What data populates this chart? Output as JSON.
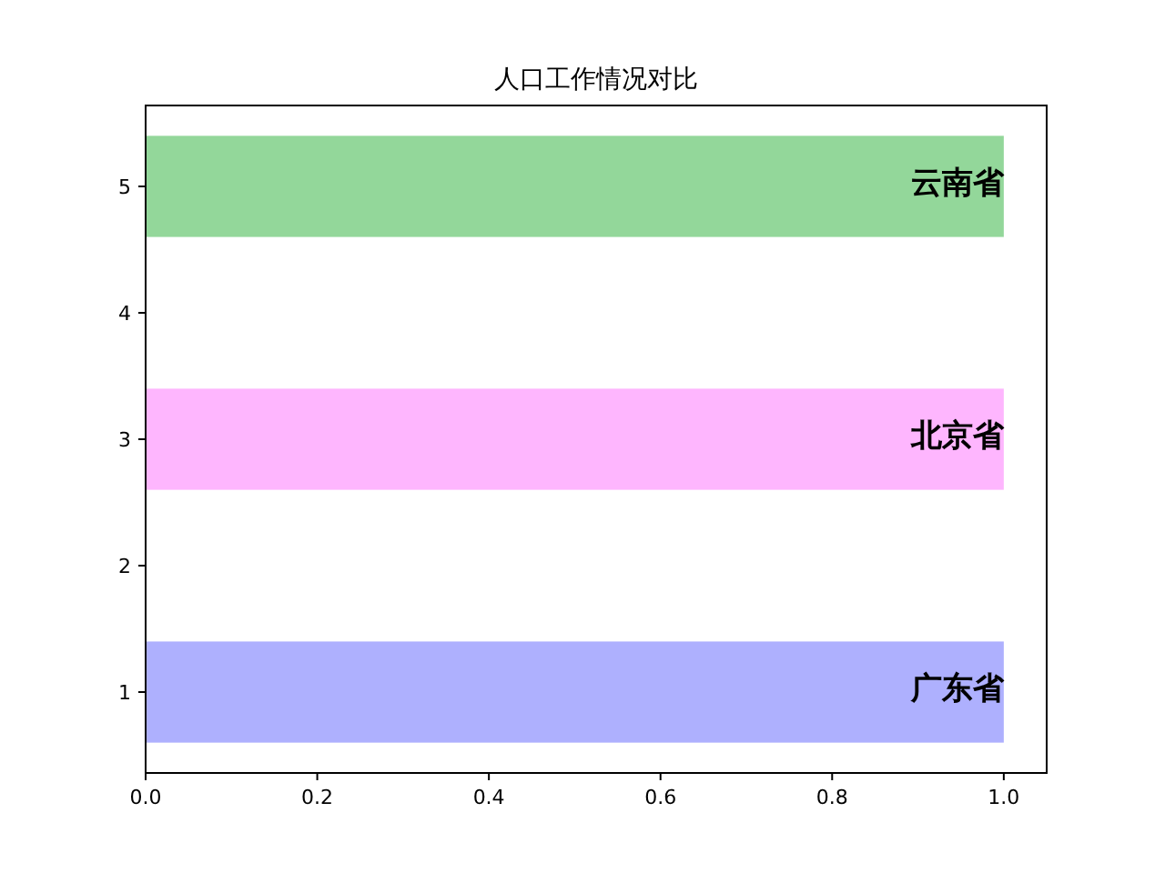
{
  "chart_data": {
    "type": "bar",
    "orientation": "horizontal",
    "title": "人口工作情况对比",
    "series": [
      {
        "name": "广东省",
        "color": "#aeb0fe",
        "x": [
          1
        ],
        "values": [
          1.0
        ]
      },
      {
        "name": "北京省",
        "color": "#feb6fe",
        "x": [
          3
        ],
        "values": [
          1.0
        ]
      },
      {
        "name": "云南省",
        "color": "#93d79a",
        "x": [
          5
        ],
        "values": [
          1.0
        ]
      }
    ],
    "xlim": [
      0,
      1.05
    ],
    "xticks": [
      {
        "value": 0,
        "label": "0.0"
      },
      {
        "value": 0.2,
        "label": "0.2"
      },
      {
        "value": 0.4,
        "label": "0.4"
      },
      {
        "value": 0.6,
        "label": "0.6"
      },
      {
        "value": 0.8,
        "label": "0.8"
      },
      {
        "value": 1.0,
        "label": "1.0"
      }
    ],
    "ylim": [
      0.36,
      5.64
    ],
    "yticks": [
      1,
      2,
      3,
      4,
      5
    ]
  }
}
